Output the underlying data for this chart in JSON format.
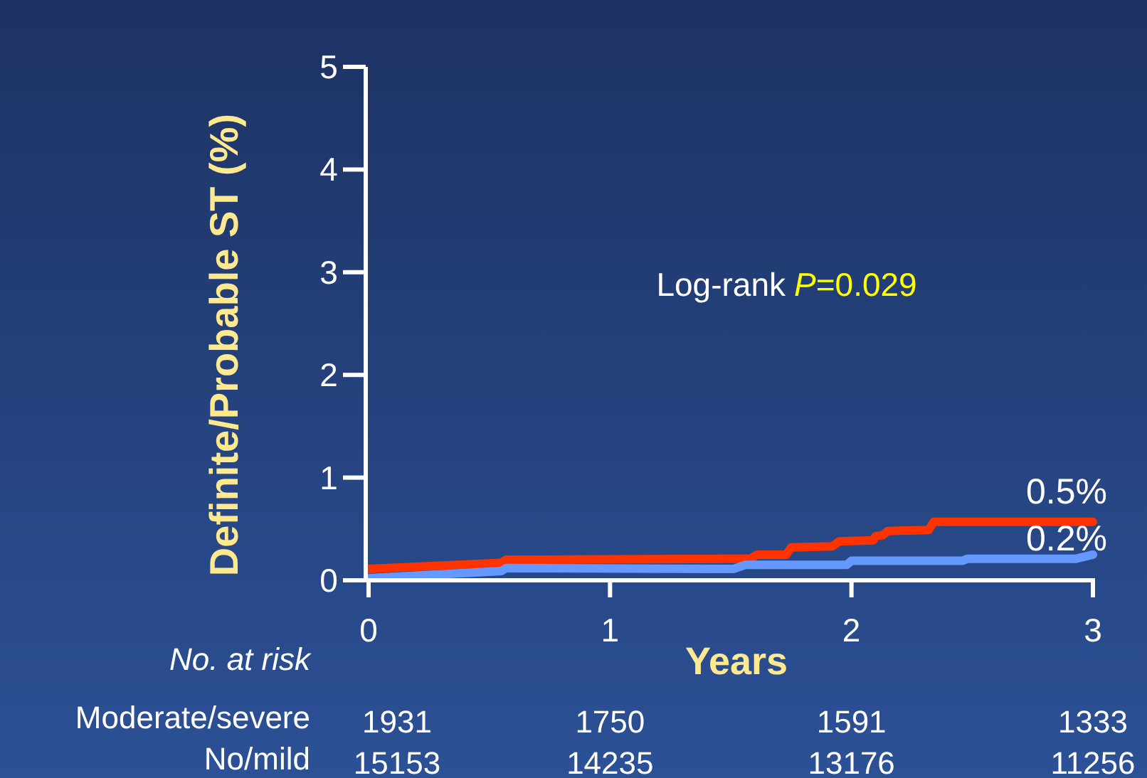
{
  "chart_data": {
    "type": "line",
    "xlabel": "Years",
    "ylabel": "Definite/Probable ST (%)",
    "xlim": [
      0,
      3
    ],
    "xticks": [
      0,
      1,
      2,
      3
    ],
    "ylim": [
      0,
      5
    ],
    "yticks": [
      0,
      1,
      2,
      3,
      4,
      5
    ],
    "grid": false,
    "line_style": "solid",
    "series": [
      {
        "color": "#ff3300",
        "x": [
          0,
          0.55,
          0.57,
          1.58,
          1.61,
          1.73,
          1.75,
          1.92,
          1.95,
          2.09,
          2.1,
          2.13,
          2.15,
          2.32,
          2.34,
          3
        ],
        "values": [
          0.11,
          0.17,
          0.2,
          0.21,
          0.25,
          0.25,
          0.32,
          0.33,
          0.38,
          0.39,
          0.43,
          0.44,
          0.48,
          0.49,
          0.57,
          0.57
        ]
      },
      {
        "color": "#6699ff",
        "x": [
          0,
          0.55,
          0.57,
          1.51,
          1.56,
          1.98,
          2.0,
          2.46,
          2.48,
          2.93,
          3
        ],
        "values": [
          0.02,
          0.09,
          0.12,
          0.11,
          0.15,
          0.15,
          0.19,
          0.19,
          0.21,
          0.21,
          0.25
        ]
      }
    ],
    "annotations": [
      "Log-rank",
      "P=0.029",
      {
        "text": "0.5%",
        "x": 3,
        "y": 0.57
      },
      {
        "text": "0.2%",
        "x": 3,
        "y": 0.25
      },
      "No. at risk",
      "Moderate/severe",
      "No/mild",
      "1931",
      "1750",
      "1591",
      "1333",
      "15153",
      "14235",
      "13176",
      "11256"
    ]
  }
}
